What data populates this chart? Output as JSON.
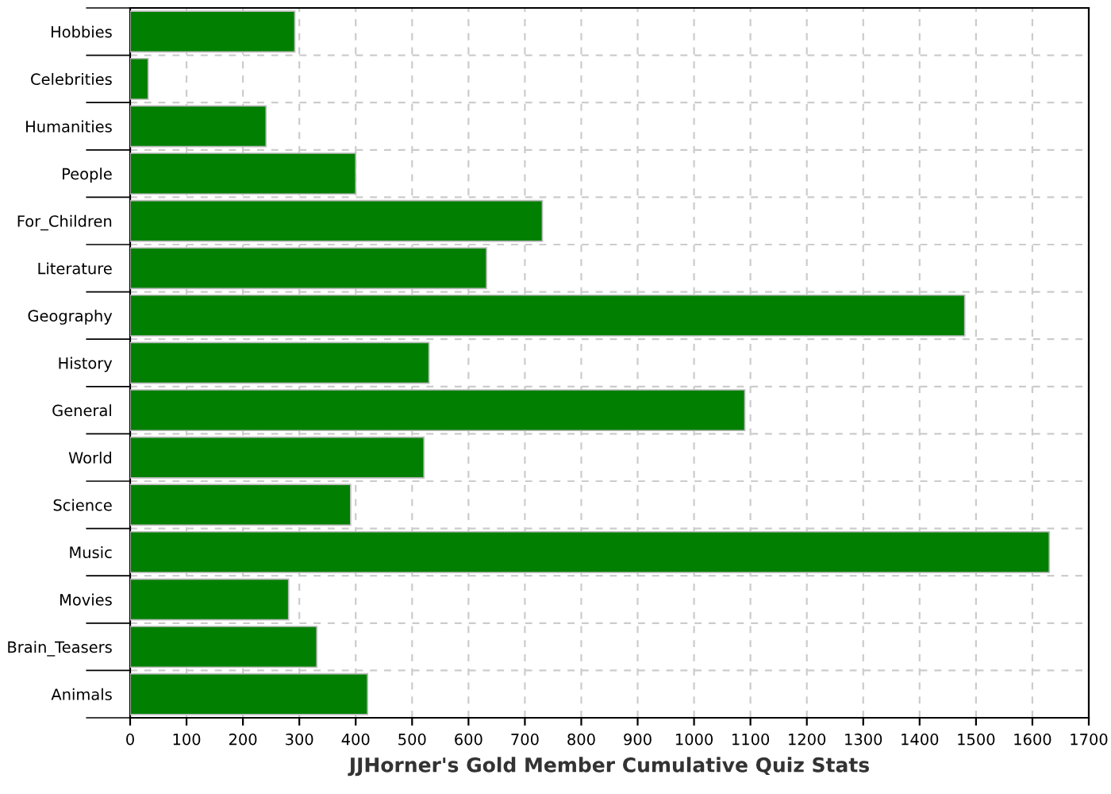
{
  "chart_data": {
    "type": "bar",
    "orientation": "horizontal",
    "xlabel": "JJHorner's Gold Member Cumulative Quiz Stats",
    "categories": [
      "Hobbies",
      "Celebrities",
      "Humanities",
      "People",
      "For_Children",
      "Literature",
      "Geography",
      "History",
      "General",
      "World",
      "Science",
      "Music",
      "Movies",
      "Brain_Teasers",
      "Animals"
    ],
    "values": [
      292,
      32,
      241,
      400,
      731,
      632,
      1480,
      530,
      1090,
      521,
      391,
      1630,
      281,
      331,
      421
    ],
    "color": "#007f00",
    "xlim": [
      0,
      1700
    ],
    "xticks": [
      0,
      100,
      200,
      300,
      400,
      500,
      600,
      700,
      800,
      900,
      1000,
      1100,
      1200,
      1300,
      1400,
      1500,
      1600,
      1700
    ],
    "grid": true
  }
}
